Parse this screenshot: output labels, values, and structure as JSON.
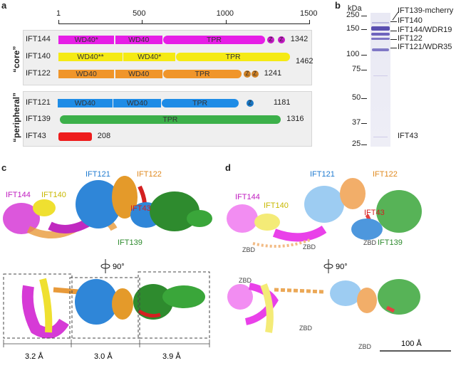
{
  "panels": {
    "a": "a",
    "b": "b",
    "c": "c",
    "d": "d"
  },
  "panel_a": {
    "axis": {
      "min": 1,
      "max": 1500,
      "ticks": [
        1,
        500,
        1000,
        1500
      ]
    },
    "groups": [
      {
        "label": "“core”",
        "proteins": [
          {
            "name": "IFT144",
            "length": "1342",
            "color": "#e61ee6",
            "domains": [
              {
                "label": "WD40*",
                "start": 1,
                "end": 335,
                "shape": "rect"
              },
              {
                "label": "WD40",
                "start": 340,
                "end": 622,
                "shape": "rect"
              },
              {
                "label": "TPR",
                "start": 628,
                "end": 1235,
                "shape": "pill"
              }
            ],
            "zn": [
              1270,
              1333
            ]
          },
          {
            "name": "IFT140",
            "length": "1462",
            "color": "#f5ea14",
            "domains": [
              {
                "label": "WD40**",
                "start": 1,
                "end": 385,
                "shape": "rect"
              },
              {
                "label": "WD40*",
                "start": 390,
                "end": 700,
                "shape": "rect"
              },
              {
                "label": "TPR",
                "start": 705,
                "end": 1385,
                "shape": "pill"
              }
            ],
            "zn": []
          },
          {
            "name": "IFT122",
            "length": "1241",
            "color": "#f0952a",
            "domains": [
              {
                "label": "WD40",
                "start": 1,
                "end": 335,
                "shape": "rect"
              },
              {
                "label": "WD40",
                "start": 340,
                "end": 622,
                "shape": "rect"
              },
              {
                "label": "TPR",
                "start": 628,
                "end": 1095,
                "shape": "pill"
              }
            ],
            "zn": [
              1130,
              1175
            ]
          }
        ]
      },
      {
        "label": "“peripheral”",
        "proteins": [
          {
            "name": "IFT121",
            "length": "1181",
            "color": "#1e8ce6",
            "domains": [
              {
                "label": "WD40",
                "start": -5,
                "end": 325,
                "shape": "rect"
              },
              {
                "label": "WD40",
                "start": 330,
                "end": 613,
                "shape": "rect"
              },
              {
                "label": "TPR",
                "start": 617,
                "end": 1077,
                "shape": "pill"
              }
            ],
            "zn": [
              1146
            ]
          },
          {
            "name": "IFT139",
            "length": "1316",
            "color": "#3cb04a",
            "domains": [
              {
                "label": "TPR",
                "start": 8,
                "end": 1330,
                "shape": "pill"
              }
            ],
            "zn": []
          },
          {
            "name": "IFT43",
            "length": "208",
            "color": "#ee1c1c",
            "domains": [
              {
                "label": "",
                "start": 1,
                "end": 200,
                "shape": "round"
              }
            ],
            "zn": []
          }
        ]
      }
    ],
    "zn_label": "Z"
  },
  "panel_b": {
    "unit": "kDa",
    "markers": [
      {
        "label": "250",
        "kda": 250
      },
      {
        "label": "150",
        "kda": 150
      },
      {
        "label": "100",
        "kda": 100
      },
      {
        "label": "75",
        "kda": 75
      },
      {
        "label": "50",
        "kda": 50
      },
      {
        "label": "37",
        "kda": 37
      },
      {
        "label": "25",
        "kda": 25
      }
    ],
    "bands": [
      "IFT139-mcherry",
      "IFT140",
      "IFT144/WDR19",
      "IFT122",
      "IFT121/WDR35",
      "IFT43"
    ]
  },
  "panel_c": {
    "labels": [
      "IFT144",
      "IFT140",
      "IFT121",
      "IFT122",
      "IFT43",
      "IFT139"
    ],
    "rotation": "90°",
    "resolutions": [
      "3.2 Å",
      "3.0 Å",
      "3.9 Å"
    ]
  },
  "panel_d": {
    "labels": [
      "IFT121",
      "IFT122",
      "IFT144",
      "IFT140",
      "IFT43",
      "IFT139"
    ],
    "zbd": "ZBD",
    "rotation": "90°",
    "scale_bar": "100 Å"
  },
  "colors": {
    "IFT144": "#e61ee6",
    "IFT140": "#f5ea14",
    "IFT122": "#f0952a",
    "IFT121": "#1e8ce6",
    "IFT139": "#3cb04a",
    "IFT43": "#ee1c1c"
  }
}
